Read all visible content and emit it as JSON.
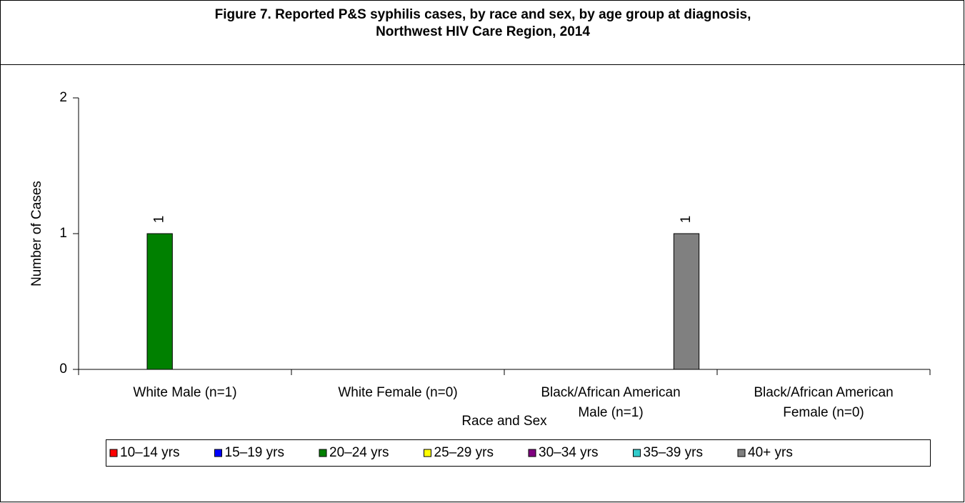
{
  "chart_data": {
    "type": "bar",
    "title": [
      "Figure 7. Reported P&S syphilis cases, by race and sex, by age group at diagnosis,",
      "Northwest HIV Care Region, 2014"
    ],
    "x_label": "Race and Sex",
    "y_label": "Number of Cases",
    "categories": [
      [
        "White Male (n=1)"
      ],
      [
        "White Female (n=0)"
      ],
      [
        "Black/African American",
        "Male (n=1)"
      ],
      [
        "Black/African American",
        "Female (n=0)"
      ]
    ],
    "series": [
      {
        "name": "10–14 yrs",
        "color": "#ff0000",
        "values": [
          0,
          0,
          0,
          0
        ]
      },
      {
        "name": "15–19 yrs",
        "color": "#0000ff",
        "values": [
          0,
          0,
          0,
          0
        ]
      },
      {
        "name": "20–24 yrs",
        "color": "#008000",
        "values": [
          1,
          0,
          0,
          0
        ]
      },
      {
        "name": "25–29 yrs",
        "color": "#ffff00",
        "values": [
          0,
          0,
          0,
          0
        ]
      },
      {
        "name": "30–34 yrs",
        "color": "#800080",
        "values": [
          0,
          0,
          0,
          0
        ]
      },
      {
        "name": "35–39 yrs",
        "color": "#33cccc",
        "values": [
          0,
          0,
          0,
          0
        ]
      },
      {
        "name": "40+ yrs",
        "color": "#808080",
        "values": [
          0,
          0,
          1,
          0
        ]
      }
    ],
    "ylim": [
      0,
      2
    ],
    "yticks": [
      0,
      1,
      2
    ],
    "legend": "bottom"
  }
}
